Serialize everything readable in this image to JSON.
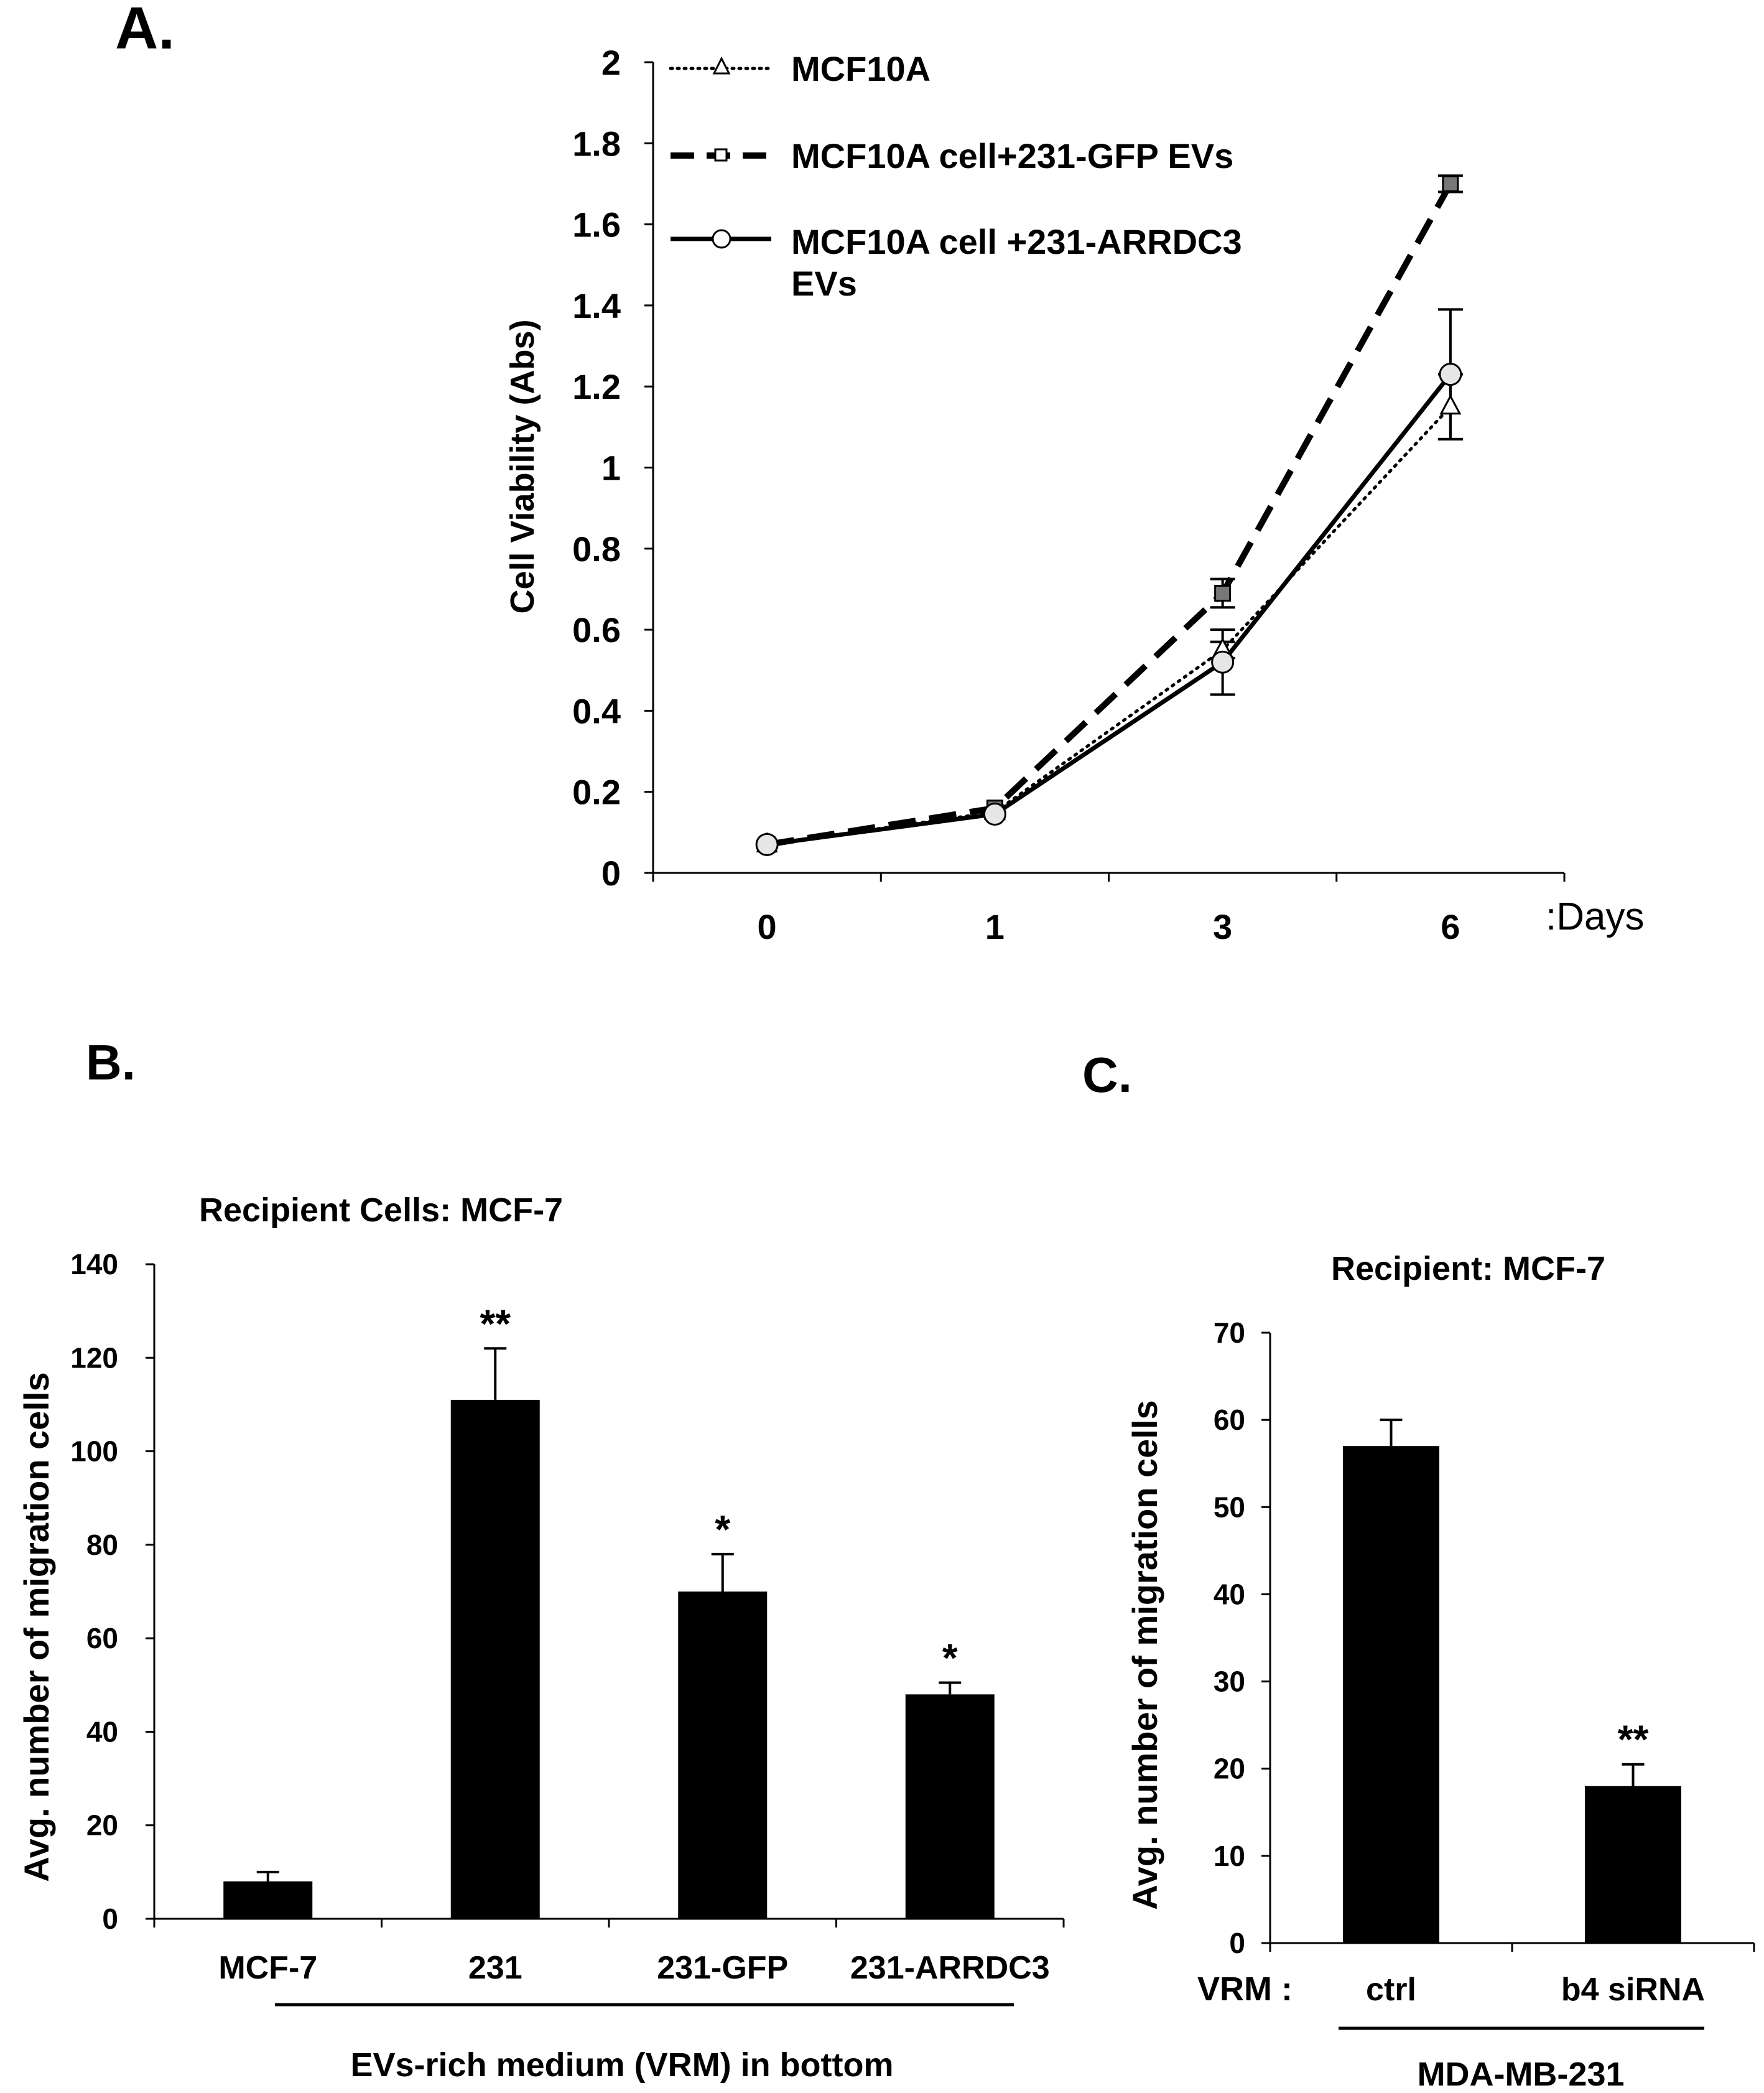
{
  "chart_data": [
    {
      "panel": "A.",
      "type": "line",
      "title": "",
      "xlabel": ":Days",
      "ylabel": "Cell Viability (Abs)",
      "categories": [
        "0",
        "1",
        "3",
        "6"
      ],
      "ylim": [
        0,
        2
      ],
      "yticks": [
        "0",
        "0.2",
        "0.4",
        "0.6",
        "0.8",
        "1",
        "1.2",
        "1.4",
        "1.6",
        "1.8",
        "2"
      ],
      "legend_position": "top-left",
      "series": [
        {
          "name": "MCF10A",
          "style": "dotted",
          "marker": "triangle",
          "values": [
            0.07,
            0.15,
            0.55,
            1.15
          ],
          "errors": [
            0.005,
            0.01,
            0.02,
            0.08
          ]
        },
        {
          "name": "MCF10A cell+231-GFP EVs",
          "style": "dashed",
          "marker": "square",
          "values": [
            0.07,
            0.16,
            0.69,
            1.7
          ],
          "errors": [
            0.005,
            0.01,
            0.035,
            0.02
          ]
        },
        {
          "name": "MCF10A cell +231-ARRDC3 EVs",
          "legend_lines": [
            "MCF10A cell +231-ARRDC3",
            "EVs"
          ],
          "style": "solid",
          "marker": "circle",
          "values": [
            0.07,
            0.145,
            0.52,
            1.23
          ],
          "errors": [
            0.005,
            0.01,
            0.08,
            0.16
          ]
        }
      ]
    },
    {
      "panel": "B.",
      "type": "bar",
      "title": "Recipient Cells: MCF-7",
      "xlabel": "EVs-rich medium (VRM) in bottom",
      "ylabel": "Avg. number of migration cells",
      "categories": [
        "MCF-7",
        "231",
        "231-GFP",
        "231-ARRDC3"
      ],
      "values": [
        8,
        111,
        70,
        48
      ],
      "errors": [
        2,
        11,
        8,
        2.5
      ],
      "significance": [
        "",
        "**",
        "*",
        "*"
      ],
      "ylim": [
        0,
        140
      ],
      "yticks": [
        "0",
        "20",
        "40",
        "60",
        "80",
        "100",
        "120",
        "140"
      ]
    },
    {
      "panel": "C.",
      "type": "bar",
      "title": "Recipient: MCF-7",
      "xlabel": "MDA-MB-231",
      "xprefix": "VRM :",
      "ylabel": "Avg. number of migration cells",
      "categories": [
        "ctrl",
        "b4 siRNA"
      ],
      "values": [
        57,
        18
      ],
      "errors": [
        3,
        2.5
      ],
      "significance": [
        "",
        "**"
      ],
      "ylim": [
        0,
        70
      ],
      "yticks": [
        "0",
        "10",
        "20",
        "30",
        "40",
        "50",
        "60",
        "70"
      ]
    }
  ]
}
